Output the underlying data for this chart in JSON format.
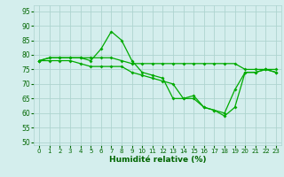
{
  "xlabel": "Humidité relative (%)",
  "xlim": [
    -0.5,
    23.5
  ],
  "ylim": [
    49,
    97
  ],
  "yticks": [
    50,
    55,
    60,
    65,
    70,
    75,
    80,
    85,
    90,
    95
  ],
  "xticks": [
    0,
    1,
    2,
    3,
    4,
    5,
    6,
    7,
    8,
    9,
    10,
    11,
    12,
    13,
    14,
    15,
    16,
    17,
    18,
    19,
    20,
    21,
    22,
    23
  ],
  "background_color": "#d4eeed",
  "grid_color": "#aed4d0",
  "line_color": "#00aa00",
  "lines": [
    [
      78,
      79,
      79,
      79,
      79,
      79,
      79,
      79,
      78,
      77,
      77,
      77,
      77,
      77,
      77,
      77,
      77,
      77,
      77,
      77,
      75,
      75,
      75,
      75
    ],
    [
      78,
      79,
      79,
      79,
      79,
      78,
      82,
      88,
      85,
      78,
      74,
      73,
      72,
      65,
      65,
      66,
      62,
      61,
      60,
      68,
      74,
      74,
      75,
      74
    ],
    [
      78,
      78,
      78,
      78,
      77,
      76,
      76,
      76,
      76,
      74,
      73,
      72,
      71,
      70,
      65,
      65,
      62,
      61,
      59,
      62,
      74,
      74,
      75,
      74
    ]
  ]
}
